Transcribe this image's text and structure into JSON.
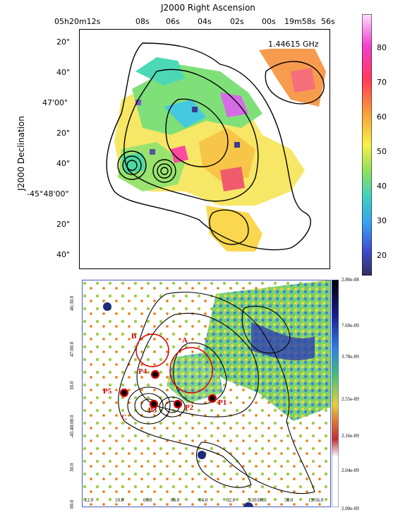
{
  "top_panel": {
    "ra_axis_title": "J2000 Right Ascension",
    "dec_axis_title": "J2000 Declination",
    "frequency_label": "1.44615 GHz",
    "ra_ticks": [
      "05h20m12s",
      "08s",
      "06s",
      "04s",
      "02s",
      "00s",
      "19m58s",
      "56s"
    ],
    "dec_ticks": [
      "20\"",
      "40\"",
      "47'00\"",
      "20\"",
      "40\"",
      "-45°48'00\"",
      "20\"",
      "40\""
    ],
    "colorbar_ticks": [
      "80",
      "70",
      "60",
      "50",
      "40",
      "30",
      "20"
    ]
  },
  "bottom_panel": {
    "x_ticks": [
      "12.0",
      "10.0",
      "08.0",
      "06.0",
      "04.0",
      "02.0",
      "5:20:00.0",
      "58.0",
      "19:56.0"
    ],
    "y_ticks": [
      "46:30.0",
      "47:00.0",
      "30.0",
      "-45:48:00.0",
      "30.0",
      "00.0"
    ],
    "colorbar_ticks": [
      "2.80e-08",
      "7.69e-09",
      "3.78e-09",
      "2.55e-09",
      "2.16e-09",
      "2.04e-09",
      "2.00e-09"
    ],
    "markers": [
      {
        "label": "A"
      },
      {
        "label": "B"
      },
      {
        "label": "C"
      },
      {
        "label": "P1"
      },
      {
        "label": "P2"
      },
      {
        "label": "P3"
      },
      {
        "label": "P4"
      },
      {
        "label": "P5"
      }
    ],
    "colors": {
      "marker": "#d60000",
      "contour": "#000000"
    }
  }
}
